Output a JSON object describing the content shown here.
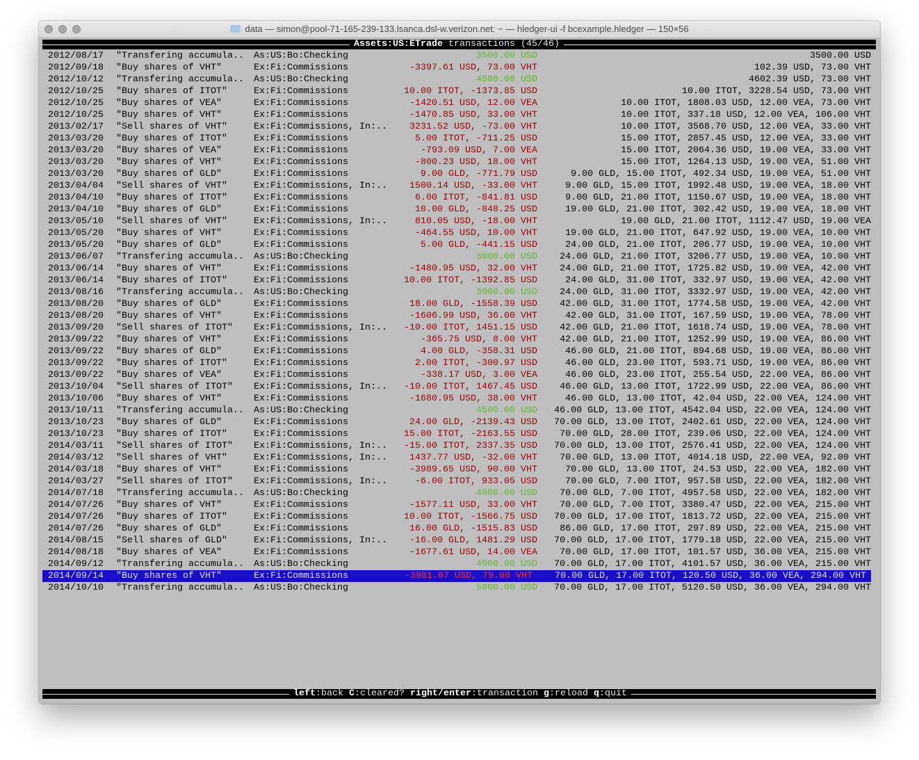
{
  "window": {
    "title": "data — simon@pool-71-165-239-133.lsanca.dsl-w.verizon.net: ~ — hledger-ui -f bcexample.hledger — 150×56",
    "folder_icon": "folder-icon"
  },
  "header": {
    "account": "Assets:US:ETrade",
    "label": "transactions",
    "position": "(45/46)"
  },
  "colors": {
    "negative": "#9a0000",
    "positive": "#5cb82a",
    "selection": "#1a0fc6"
  },
  "selected_index": 44,
  "rows": [
    [
      "2012/08/17",
      "\"Transfering accumula..",
      "As:US:Bo:Checking",
      "3500.00 USD",
      "3500.00 USD"
    ],
    [
      "2012/09/18",
      "\"Buy shares of VHT\"",
      "Ex:Fi:Commissions",
      "-3397.61 USD, 73.00 VHT",
      "102.39 USD, 73.00 VHT"
    ],
    [
      "2012/10/12",
      "\"Transfering accumula..",
      "As:US:Bo:Checking",
      "4500.00 USD",
      "4602.39 USD, 73.00 VHT"
    ],
    [
      "2012/10/25",
      "\"Buy shares of ITOT\"",
      "Ex:Fi:Commissions",
      "10.00 ITOT, -1373.85 USD",
      "10.00 ITOT, 3228.54 USD, 73.00 VHT"
    ],
    [
      "2012/10/25",
      "\"Buy shares of VEA\"",
      "Ex:Fi:Commissions",
      "-1420.51 USD, 12.00 VEA",
      "10.00 ITOT, 1808.03 USD, 12.00 VEA, 73.00 VHT"
    ],
    [
      "2012/10/25",
      "\"Buy shares of VHT\"",
      "Ex:Fi:Commissions",
      "-1470.85 USD, 33.00 VHT",
      "10.00 ITOT, 337.18 USD, 12.00 VEA, 106.00 VHT"
    ],
    [
      "2013/02/17",
      "\"Sell shares of VHT\"",
      "Ex:Fi:Commissions, In:..",
      "3231.52 USD, -73.00 VHT",
      "10.00 ITOT, 3568.70 USD, 12.00 VEA, 33.00 VHT"
    ],
    [
      "2013/03/20",
      "\"Buy shares of ITOT\"",
      "Ex:Fi:Commissions",
      "5.00 ITOT, -711.25 USD",
      "15.00 ITOT, 2857.45 USD, 12.00 VEA, 33.00 VHT"
    ],
    [
      "2013/03/20",
      "\"Buy shares of VEA\"",
      "Ex:Fi:Commissions",
      "-793.09 USD, 7.00 VEA",
      "15.00 ITOT, 2064.36 USD, 19.00 VEA, 33.00 VHT"
    ],
    [
      "2013/03/20",
      "\"Buy shares of VHT\"",
      "Ex:Fi:Commissions",
      "-800.23 USD, 18.00 VHT",
      "15.00 ITOT, 1264.13 USD, 19.00 VEA, 51.00 VHT"
    ],
    [
      "2013/03/20",
      "\"Buy shares of GLD\"",
      "Ex:Fi:Commissions",
      "9.00 GLD, -771.79 USD",
      "9.00 GLD, 15.00 ITOT, 492.34 USD, 19.00 VEA, 51.00 VHT"
    ],
    [
      "2013/04/04",
      "\"Sell shares of VHT\"",
      "Ex:Fi:Commissions, In:..",
      "1500.14 USD, -33.00 VHT",
      "9.00 GLD, 15.00 ITOT, 1992.48 USD, 19.00 VEA, 18.00 VHT"
    ],
    [
      "2013/04/10",
      "\"Buy shares of ITOT\"",
      "Ex:Fi:Commissions",
      "6.00 ITOT, -841.81 USD",
      "9.00 GLD, 21.00 ITOT, 1150.67 USD, 19.00 VEA, 18.00 VHT"
    ],
    [
      "2013/04/10",
      "\"Buy shares of GLD\"",
      "Ex:Fi:Commissions",
      "10.00 GLD, -848.25 USD",
      "19.00 GLD, 21.00 ITOT, 302.42 USD, 19.00 VEA, 18.00 VHT"
    ],
    [
      "2013/05/10",
      "\"Sell shares of VHT\"",
      "Ex:Fi:Commissions, In:..",
      "810.05 USD, -18.00 VHT",
      "19.00 GLD, 21.00 ITOT, 1112.47 USD, 19.00 VEA"
    ],
    [
      "2013/05/20",
      "\"Buy shares of VHT\"",
      "Ex:Fi:Commissions",
      "-464.55 USD, 10.00 VHT",
      "19.00 GLD, 21.00 ITOT, 647.92 USD, 19.00 VEA, 10.00 VHT"
    ],
    [
      "2013/05/20",
      "\"Buy shares of GLD\"",
      "Ex:Fi:Commissions",
      "5.00 GLD, -441.15 USD",
      "24.00 GLD, 21.00 ITOT, 206.77 USD, 19.00 VEA, 10.00 VHT"
    ],
    [
      "2013/06/07",
      "\"Transfering accumula..",
      "As:US:Bo:Checking",
      "3000.00 USD",
      "24.00 GLD, 21.00 ITOT, 3206.77 USD, 19.00 VEA, 10.00 VHT"
    ],
    [
      "2013/06/14",
      "\"Buy shares of VHT\"",
      "Ex:Fi:Commissions",
      "-1480.95 USD, 32.00 VHT",
      "24.00 GLD, 21.00 ITOT, 1725.82 USD, 19.00 VEA, 42.00 VHT"
    ],
    [
      "2013/06/14",
      "\"Buy shares of ITOT\"",
      "Ex:Fi:Commissions",
      "10.00 ITOT, -1392.85 USD",
      "24.00 GLD, 31.00 ITOT, 332.97 USD, 19.00 VEA, 42.00 VHT"
    ],
    [
      "2013/08/16",
      "\"Transfering accumula..",
      "As:US:Bo:Checking",
      "3000.00 USD",
      "24.00 GLD, 31.00 ITOT, 3332.97 USD, 19.00 VEA, 42.00 VHT"
    ],
    [
      "2013/08/20",
      "\"Buy shares of GLD\"",
      "Ex:Fi:Commissions",
      "18.00 GLD, -1558.39 USD",
      "42.00 GLD, 31.00 ITOT, 1774.58 USD, 19.00 VEA, 42.00 VHT"
    ],
    [
      "2013/08/20",
      "\"Buy shares of VHT\"",
      "Ex:Fi:Commissions",
      "-1606.99 USD, 36.00 VHT",
      "42.00 GLD, 31.00 ITOT, 167.59 USD, 19.00 VEA, 78.00 VHT"
    ],
    [
      "2013/09/20",
      "\"Sell shares of ITOT\"",
      "Ex:Fi:Commissions, In:..",
      "-10.00 ITOT, 1451.15 USD",
      "42.00 GLD, 21.00 ITOT, 1618.74 USD, 19.00 VEA, 78.00 VHT"
    ],
    [
      "2013/09/22",
      "\"Buy shares of VHT\"",
      "Ex:Fi:Commissions",
      "-365.75 USD, 8.00 VHT",
      "42.00 GLD, 21.00 ITOT, 1252.99 USD, 19.00 VEA, 86.00 VHT"
    ],
    [
      "2013/09/22",
      "\"Buy shares of GLD\"",
      "Ex:Fi:Commissions",
      "4.00 GLD, -358.31 USD",
      "46.00 GLD, 21.00 ITOT, 894.68 USD, 19.00 VEA, 86.00 VHT"
    ],
    [
      "2013/09/22",
      "\"Buy shares of ITOT\"",
      "Ex:Fi:Commissions",
      "2.00 ITOT, -300.97 USD",
      "46.00 GLD, 23.00 ITOT, 593.71 USD, 19.00 VEA, 86.00 VHT"
    ],
    [
      "2013/09/22",
      "\"Buy shares of VEA\"",
      "Ex:Fi:Commissions",
      "-338.17 USD, 3.00 VEA",
      "46.00 GLD, 23.00 ITOT, 255.54 USD, 22.00 VEA, 86.00 VHT"
    ],
    [
      "2013/10/04",
      "\"Sell shares of ITOT\"",
      "Ex:Fi:Commissions, In:..",
      "-10.00 ITOT, 1467.45 USD",
      "46.00 GLD, 13.00 ITOT, 1722.99 USD, 22.00 VEA, 86.00 VHT"
    ],
    [
      "2013/10/06",
      "\"Buy shares of VHT\"",
      "Ex:Fi:Commissions",
      "-1680.95 USD, 38.00 VHT",
      "46.00 GLD, 13.00 ITOT, 42.04 USD, 22.00 VEA, 124.00 VHT"
    ],
    [
      "2013/10/11",
      "\"Transfering accumula..",
      "As:US:Bo:Checking",
      "4500.00 USD",
      "46.00 GLD, 13.00 ITOT, 4542.04 USD, 22.00 VEA, 124.00 VHT"
    ],
    [
      "2013/10/23",
      "\"Buy shares of GLD\"",
      "Ex:Fi:Commissions",
      "24.00 GLD, -2139.43 USD",
      "70.00 GLD, 13.00 ITOT, 2402.61 USD, 22.00 VEA, 124.00 VHT"
    ],
    [
      "2013/10/23",
      "\"Buy shares of ITOT\"",
      "Ex:Fi:Commissions",
      "15.00 ITOT, -2163.55 USD",
      "70.00 GLD, 28.00 ITOT, 239.06 USD, 22.00 VEA, 124.00 VHT"
    ],
    [
      "2014/03/11",
      "\"Sell shares of ITOT\"",
      "Ex:Fi:Commissions, In:..",
      "-15.00 ITOT, 2337.35 USD",
      "70.00 GLD, 13.00 ITOT, 2576.41 USD, 22.00 VEA, 124.00 VHT"
    ],
    [
      "2014/03/12",
      "\"Sell shares of VHT\"",
      "Ex:Fi:Commissions, In:..",
      "1437.77 USD, -32.00 VHT",
      "70.00 GLD, 13.00 ITOT, 4014.18 USD, 22.00 VEA, 92.00 VHT"
    ],
    [
      "2014/03/18",
      "\"Buy shares of VHT\"",
      "Ex:Fi:Commissions",
      "-3989.65 USD, 90.00 VHT",
      "70.00 GLD, 13.00 ITOT, 24.53 USD, 22.00 VEA, 182.00 VHT"
    ],
    [
      "2014/03/27",
      "\"Sell shares of ITOT\"",
      "Ex:Fi:Commissions, In:..",
      "-6.00 ITOT, 933.05 USD",
      "70.00 GLD, 7.00 ITOT, 957.58 USD, 22.00 VEA, 182.00 VHT"
    ],
    [
      "2014/07/18",
      "\"Transfering accumula..",
      "As:US:Bo:Checking",
      "4000.00 USD",
      "70.00 GLD, 7.00 ITOT, 4957.58 USD, 22.00 VEA, 182.00 VHT"
    ],
    [
      "2014/07/26",
      "\"Buy shares of VHT\"",
      "Ex:Fi:Commissions",
      "-1577.11 USD, 33.00 VHT",
      "70.00 GLD, 7.00 ITOT, 3380.47 USD, 22.00 VEA, 215.00 VHT"
    ],
    [
      "2014/07/26",
      "\"Buy shares of ITOT\"",
      "Ex:Fi:Commissions",
      "10.00 ITOT, -1566.75 USD",
      "70.00 GLD, 17.00 ITOT, 1813.72 USD, 22.00 VEA, 215.00 VHT"
    ],
    [
      "2014/07/26",
      "\"Buy shares of GLD\"",
      "Ex:Fi:Commissions",
      "16.00 GLD, -1515.83 USD",
      "86.00 GLD, 17.00 ITOT, 297.89 USD, 22.00 VEA, 215.00 VHT"
    ],
    [
      "2014/08/15",
      "\"Sell shares of GLD\"",
      "Ex:Fi:Commissions, In:..",
      "-16.00 GLD, 1481.29 USD",
      "70.00 GLD, 17.00 ITOT, 1779.18 USD, 22.00 VEA, 215.00 VHT"
    ],
    [
      "2014/08/18",
      "\"Buy shares of VEA\"",
      "Ex:Fi:Commissions",
      "-1677.61 USD, 14.00 VEA",
      "70.00 GLD, 17.00 ITOT, 101.57 USD, 36.00 VEA, 215.00 VHT"
    ],
    [
      "2014/09/12",
      "\"Transfering accumula..",
      "As:US:Bo:Checking",
      "4000.00 USD",
      "70.00 GLD, 17.00 ITOT, 4101.57 USD, 36.00 VEA, 215.00 VHT"
    ],
    [
      "2014/09/14",
      "\"Buy shares of VHT\"",
      "Ex:Fi:Commissions",
      "-3981.07 USD, 79.00 VHT",
      "70.00 GLD, 17.00 ITOT, 120.50 USD, 36.00 VEA, 294.00 VHT"
    ],
    [
      "2014/10/10",
      "\"Transfering accumula..",
      "As:US:Bo:Checking",
      "5000.00 USD",
      "70.00 GLD, 17.00 ITOT, 5120.50 USD, 36.00 VEA, 294.00 VHT"
    ]
  ],
  "footer": {
    "keys": [
      {
        "key": "left",
        "action": "back"
      },
      {
        "key": "C",
        "action": "cleared?"
      },
      {
        "key": "right/enter",
        "action": "transaction"
      },
      {
        "key": "g",
        "action": "reload"
      },
      {
        "key": "q",
        "action": "quit"
      }
    ]
  }
}
